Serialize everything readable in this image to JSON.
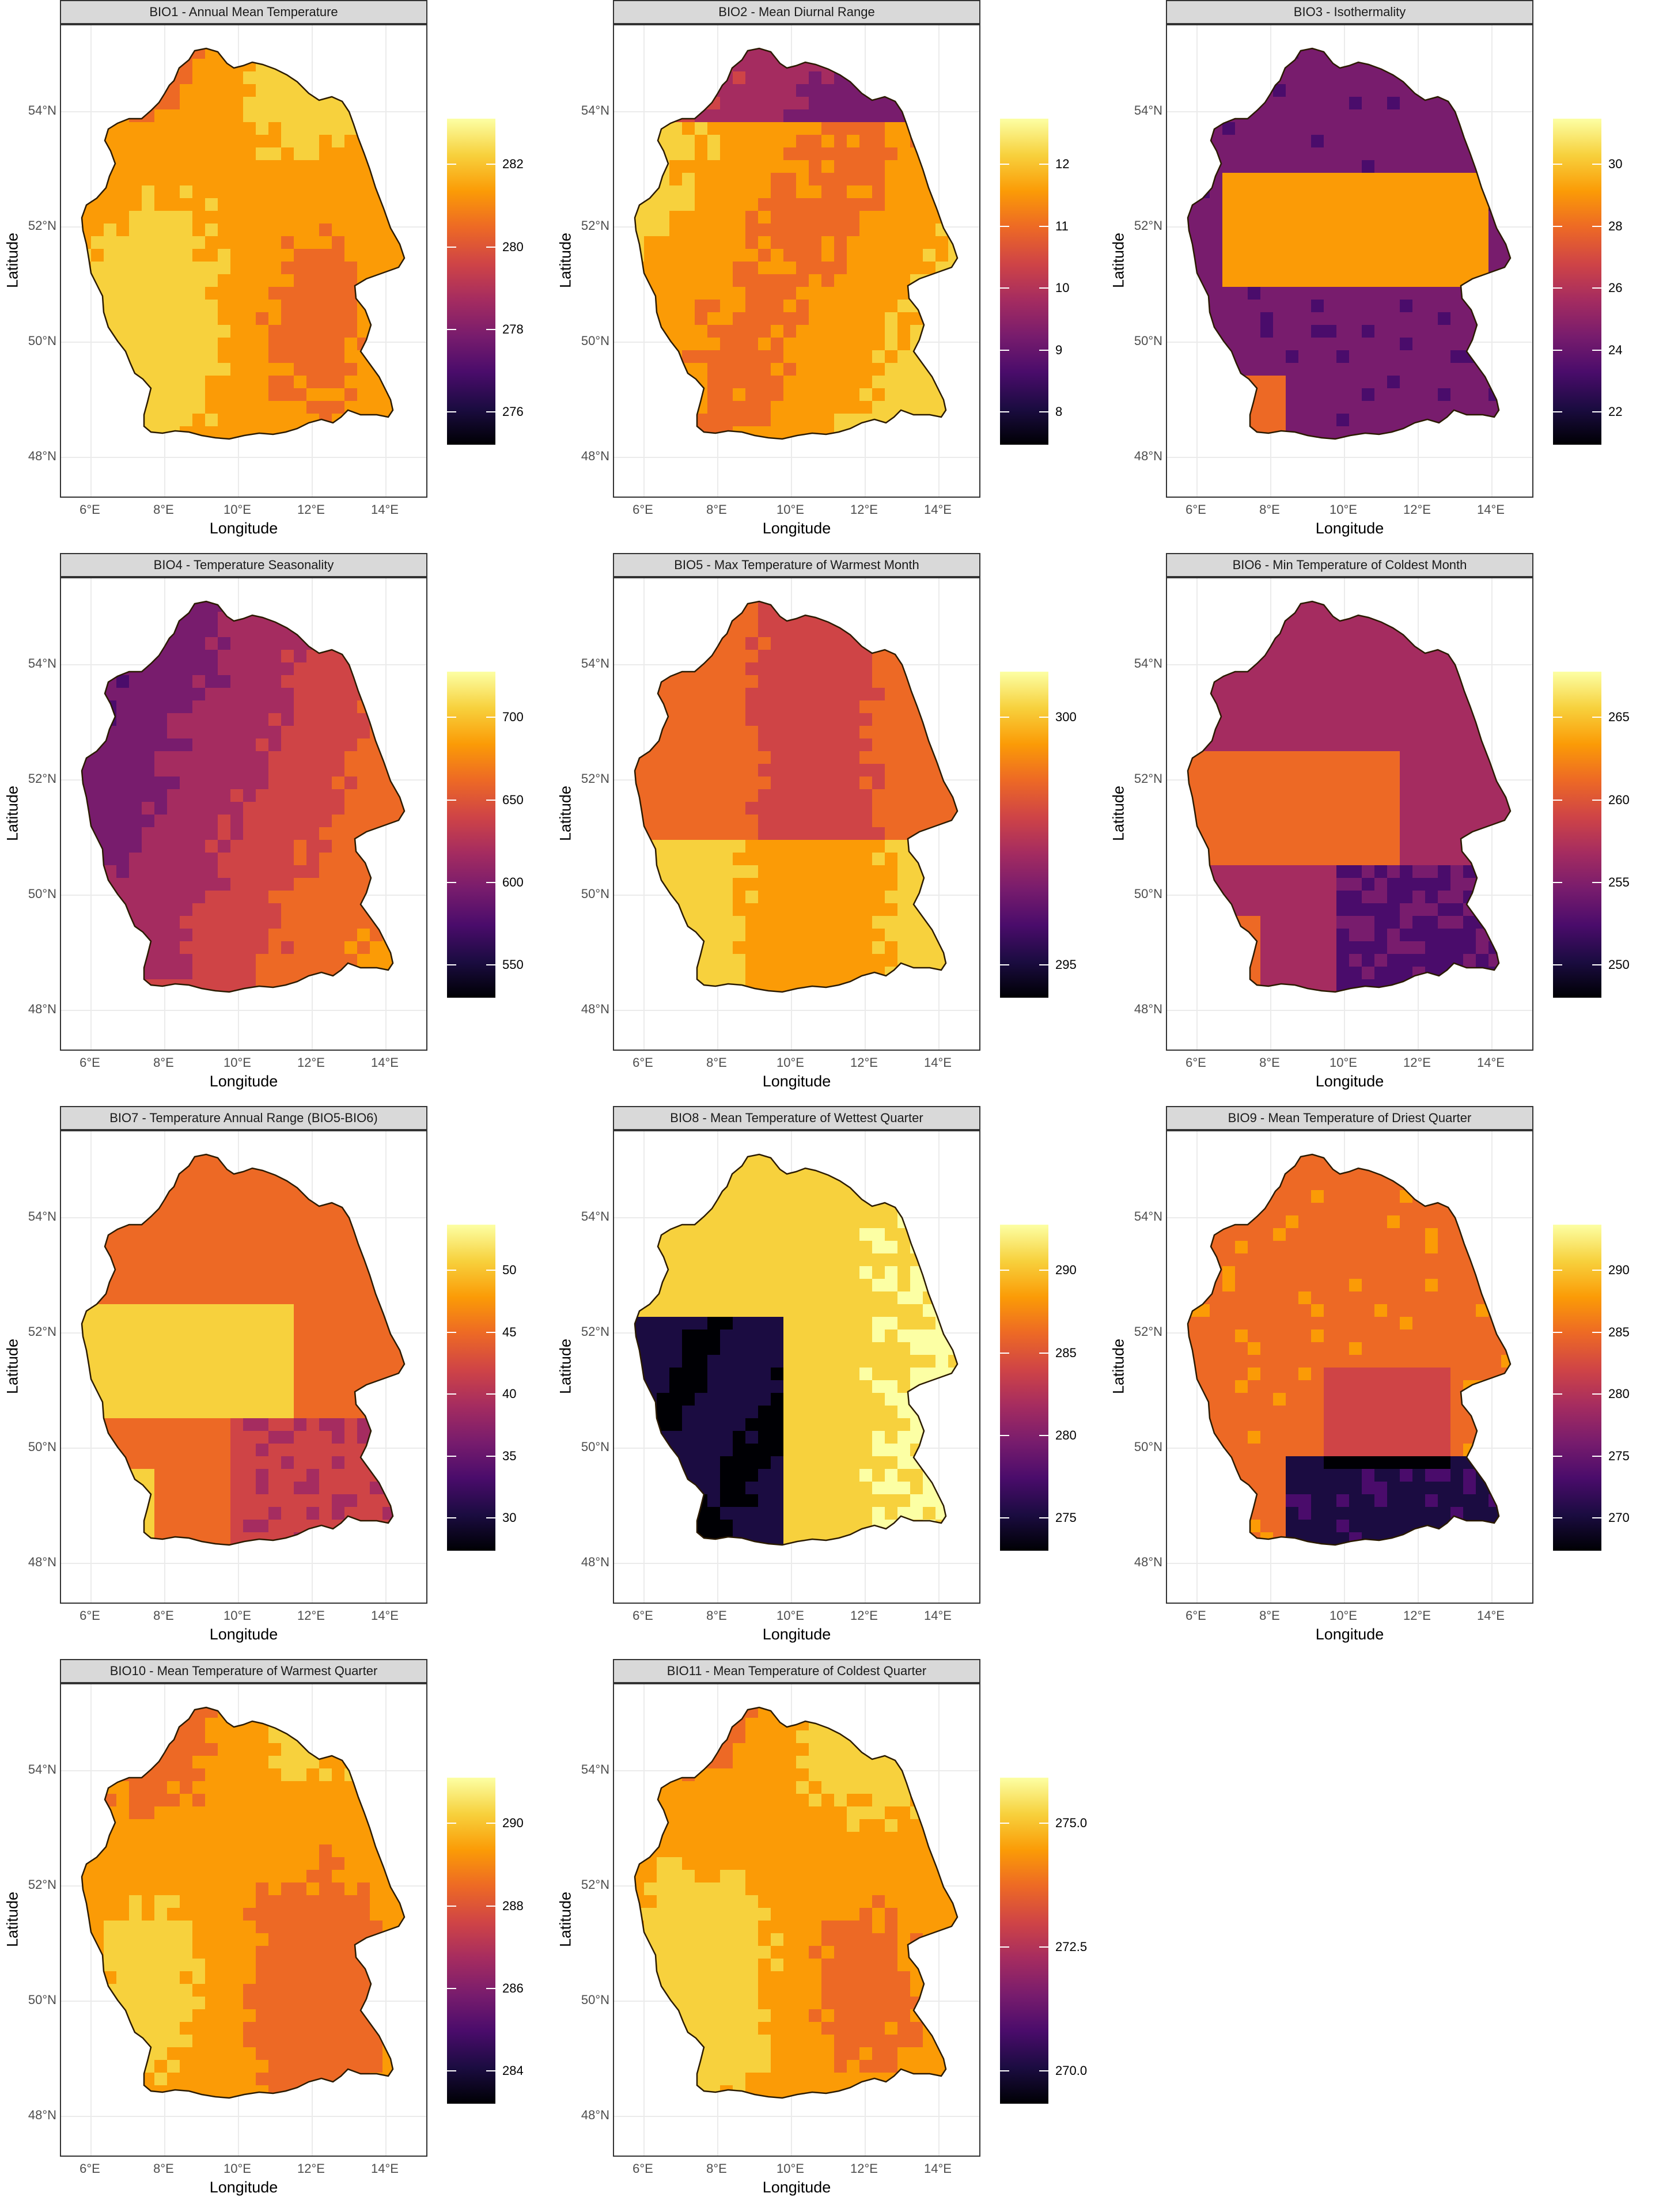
{
  "map_data": {
    "x_label": "Longitude",
    "y_label": "Latitude",
    "lat_ticks": [
      "54°N",
      "52°N",
      "50°N",
      "48°N"
    ],
    "lon_ticks": [
      "6°E",
      "8°E",
      "10°E",
      "12°E",
      "14°E"
    ],
    "colormap": [
      "#000004",
      "#1b0c41",
      "#4a0c6b",
      "#781c6d",
      "#a52c60",
      "#cf4446",
      "#ed6925",
      "#fb9b06",
      "#f7d13d",
      "#fcffa4"
    ],
    "border_color": "#2a1a00",
    "panels": [
      {
        "title": "BIO1 - Annual Mean Temperature",
        "legend_ticks": [
          "282",
          "280",
          "278",
          "276"
        ],
        "level": 0.8,
        "pattern": "gradient-warm"
      },
      {
        "title": "BIO2 - Mean Diurnal Range",
        "legend_ticks": [
          "12",
          "11",
          "10",
          "9",
          "8"
        ],
        "level": 0.78,
        "pattern": "coast-dark"
      },
      {
        "title": "BIO3 - Isothermality",
        "legend_ticks": [
          "30",
          "28",
          "26",
          "24",
          "22"
        ],
        "level": 0.3,
        "pattern": "patchy-dark"
      },
      {
        "title": "BIO4 - Temperature Seasonality",
        "legend_ticks": [
          "700",
          "650",
          "600",
          "550"
        ],
        "level": 0.62,
        "pattern": "west-dark"
      },
      {
        "title": "BIO5 - Max Temperature of Warmest Month",
        "legend_ticks": [
          "300",
          "295"
        ],
        "level": 0.62,
        "pattern": "south-bright"
      },
      {
        "title": "BIO6 - Min Temperature of Coldest Month",
        "legend_ticks": [
          "265",
          "260",
          "255",
          "250"
        ],
        "level": 0.42,
        "pattern": "patchy-mid"
      },
      {
        "title": "BIO7 - Temperature Annual Range (BIO5-BIO6)",
        "legend_ticks": [
          "50",
          "45",
          "40",
          "35",
          "30"
        ],
        "level": 0.66,
        "pattern": "patchy-mid"
      },
      {
        "title": "BIO8 - Mean Temperature of Wettest Quarter",
        "legend_ticks": [
          "290",
          "285",
          "280",
          "275"
        ],
        "level": 0.92,
        "pattern": "west-black"
      },
      {
        "title": "BIO9 - Mean Temperature of Driest Quarter",
        "legend_ticks": [
          "290",
          "285",
          "280",
          "275",
          "270"
        ],
        "level": 0.7,
        "pattern": "south-dark"
      },
      {
        "title": "BIO10 - Mean Temperature of Warmest Quarter",
        "legend_ticks": [
          "290",
          "288",
          "286",
          "284"
        ],
        "level": 0.76,
        "pattern": "gradient-warm"
      },
      {
        "title": "BIO11 - Mean Temperature of Coldest Quarter",
        "legend_ticks": [
          "275.0",
          "272.5",
          "270.0"
        ],
        "level": 0.8,
        "pattern": "gradient-warm"
      }
    ]
  }
}
